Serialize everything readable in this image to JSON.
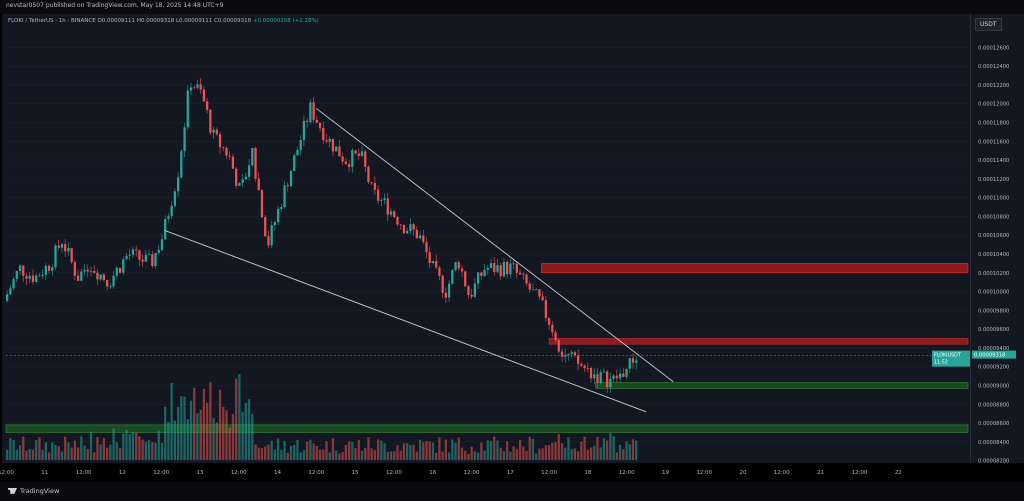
{
  "header": {
    "published": "nevstar0507 published on TradingView.com, May 18, 2025 14:48 UTC+9"
  },
  "symbol_bar": {
    "pair": "FLOKI / TetherUS · 1h · BINANCE",
    "o": "O0.00009111",
    "h": "H0.00009318",
    "l": "L0.00009111",
    "c": "C0.00009318",
    "change": "+0.00000208 (+2.28%)"
  },
  "currency_label": "USDT",
  "last_price": {
    "ticker": "FLOKIUSDT",
    "value": "0.00009318",
    "countdown": "11:52"
  },
  "footer": {
    "brand": "TradingView"
  },
  "colors": {
    "up": "#26a69a",
    "down": "#ef5350",
    "resistance_zone": "#b71c1c",
    "support_zone": "#1b5e20",
    "price_tag": "#26a69a",
    "background": "#131722"
  },
  "chart_data": {
    "type": "candlestick",
    "ylim": [
      8.1e-05,
      0.000127
    ],
    "y_ticks": [
      "0.00012600",
      "0.00012400",
      "0.00012200",
      "0.00012000",
      "0.00011800",
      "0.00011600",
      "0.00011400",
      "0.00011200",
      "0.00011000",
      "0.00010800",
      "0.00010600",
      "0.00010400",
      "0.00010200",
      "0.00010000",
      "0.00009800",
      "0.00009600",
      "0.00009400",
      "0.00009200",
      "0.00009000",
      "0.00008800",
      "0.00008600",
      "0.00008400",
      "0.00008200"
    ],
    "x_ticks": [
      {
        "label": "12:00",
        "d": 10.0
      },
      {
        "label": "11",
        "d": 10.5
      },
      {
        "label": "12:00",
        "d": 11.0
      },
      {
        "label": "12",
        "d": 11.5
      },
      {
        "label": "12:00",
        "d": 12.0
      },
      {
        "label": "13",
        "d": 12.5
      },
      {
        "label": "12:00",
        "d": 13.0
      },
      {
        "label": "14",
        "d": 13.5
      },
      {
        "label": "12:00",
        "d": 14.0
      },
      {
        "label": "15",
        "d": 14.5
      },
      {
        "label": "12:00",
        "d": 15.0
      },
      {
        "label": "16",
        "d": 15.5
      },
      {
        "label": "12:00",
        "d": 16.0
      },
      {
        "label": "17",
        "d": 16.5
      },
      {
        "label": "12:00",
        "d": 17.0
      },
      {
        "label": "18",
        "d": 17.5
      },
      {
        "label": "12:00",
        "d": 18.0
      },
      {
        "label": "19",
        "d": 18.5
      },
      {
        "label": "12:00",
        "d": 19.0
      },
      {
        "label": "20",
        "d": 19.5
      },
      {
        "label": "12:00",
        "d": 20.0
      },
      {
        "label": "21",
        "d": 20.5
      },
      {
        "label": "12:00",
        "d": 21.0
      },
      {
        "label": "22",
        "d": 21.5
      }
    ],
    "x_range": [
      10.0,
      22.0
    ],
    "price_path": [
      [
        10.0,
        9.9e-05
      ],
      [
        10.2,
        0.0001025
      ],
      [
        10.4,
        0.0001015
      ],
      [
        10.6,
        0.000103
      ],
      [
        10.75,
        0.0001055
      ],
      [
        10.95,
        0.0001015
      ],
      [
        11.1,
        0.000103
      ],
      [
        11.35,
        0.000101
      ],
      [
        11.6,
        0.000104
      ],
      [
        11.9,
        0.000103
      ],
      [
        12.05,
        0.000106
      ],
      [
        12.25,
        0.000113
      ],
      [
        12.4,
        0.0001225
      ],
      [
        12.55,
        0.000121
      ],
      [
        12.7,
        0.0001165
      ],
      [
        12.9,
        0.0001145
      ],
      [
        13.05,
        0.0001105
      ],
      [
        13.2,
        0.000115
      ],
      [
        13.4,
        0.000105
      ],
      [
        13.55,
        0.000109
      ],
      [
        13.7,
        0.000113
      ],
      [
        13.95,
        0.0001195
      ],
      [
        14.15,
        0.0001165
      ],
      [
        14.4,
        0.000114
      ],
      [
        14.6,
        0.0001145
      ],
      [
        14.75,
        0.0001105
      ],
      [
        14.95,
        0.000109
      ],
      [
        15.15,
        0.000107
      ],
      [
        15.35,
        0.000106
      ],
      [
        15.55,
        0.000102
      ],
      [
        15.7,
        0.0001
      ],
      [
        15.85,
        0.0001035
      ],
      [
        16.0,
        9.95e-05
      ],
      [
        16.2,
        0.0001025
      ],
      [
        16.4,
        0.0001025
      ],
      [
        16.55,
        0.0001025
      ],
      [
        16.75,
        0.0001005
      ],
      [
        16.9,
        9.9e-05
      ],
      [
        17.05,
        9.65e-05
      ],
      [
        17.2,
        9.35e-05
      ],
      [
        17.45,
        9.2e-05
      ],
      [
        17.65,
        9.1e-05
      ],
      [
        17.85,
        9.05e-05
      ],
      [
        18.0,
        9.15e-05
      ],
      [
        18.15,
        9.31e-05
      ]
    ],
    "volume_profile": "increasing into day 12-13 then declining",
    "zones": [
      {
        "kind": "resistance",
        "from": 0.000102,
        "to": 0.000103,
        "x_start": 16.9,
        "label": ""
      },
      {
        "kind": "resistance",
        "from": 9.44e-05,
        "to": 9.5e-05,
        "x_start": 17.0,
        "label": ""
      },
      {
        "kind": "support",
        "from": 8.97e-05,
        "to": 9.03e-05,
        "x_start": 17.6,
        "label": ""
      },
      {
        "kind": "support",
        "from": 8.5e-05,
        "to": 8.58e-05,
        "x_start": 10.0,
        "label": ""
      }
    ],
    "trendlines": [
      {
        "name": "upper",
        "from": [
          14.0,
          0.0001195
        ],
        "to": [
          18.6,
          9.04e-05
        ]
      },
      {
        "name": "lower",
        "from": [
          12.05,
          0.0001065
        ],
        "to": [
          18.25,
          8.72e-05
        ]
      }
    ],
    "last_price_value": 9.318e-05
  }
}
